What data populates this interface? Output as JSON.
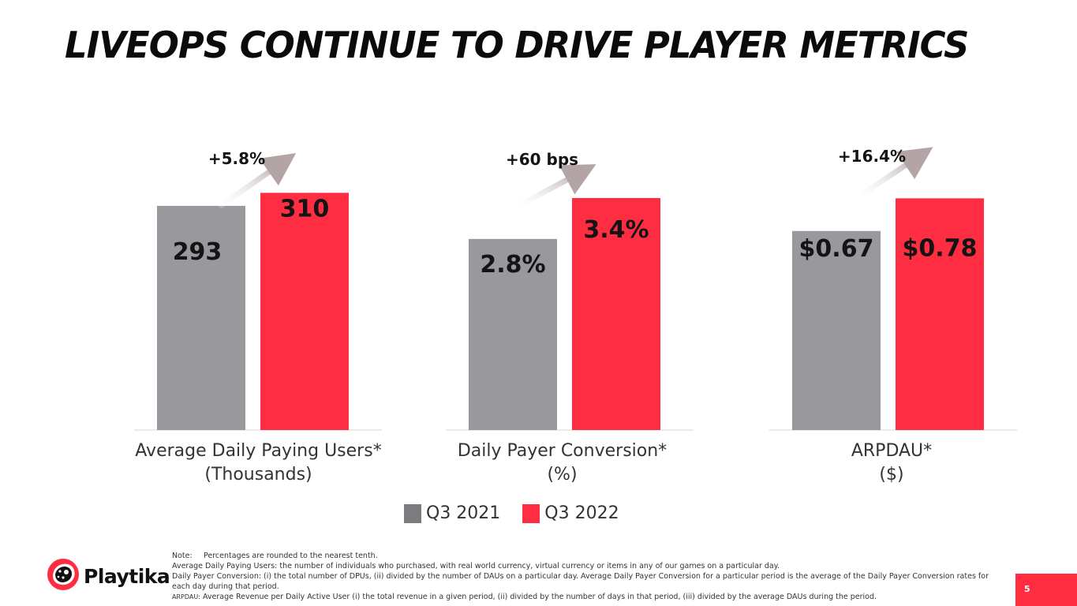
{
  "title": "LIVEOPS CONTINUE TO DRIVE PLAYER METRICS",
  "colors": {
    "q3_2021": "#99989c",
    "q3_2022": "#ff2d42",
    "accent": "#ff2d3f",
    "arrow": "#b3a4a6"
  },
  "chart_data": [
    {
      "type": "bar",
      "categories": [
        "Q3 2021",
        "Q3 2022"
      ],
      "values": [
        293,
        310
      ],
      "value_labels": [
        "293",
        "310"
      ],
      "change_label": "+5.8%",
      "xlabel_line1": "Average Daily Paying Users*",
      "xlabel_line2": "(Thousands)",
      "ylim": [
        0,
        330
      ]
    },
    {
      "type": "bar",
      "categories": [
        "Q3 2021",
        "Q3 2022"
      ],
      "values": [
        2.8,
        3.4
      ],
      "value_labels": [
        "2.8%",
        "3.4%"
      ],
      "change_label": "+60 bps",
      "xlabel_line1": "Daily Payer Conversion*",
      "xlabel_line2": "(%)",
      "ylim": [
        0,
        3.7
      ]
    },
    {
      "type": "bar",
      "categories": [
        "Q3 2021",
        "Q3 2022"
      ],
      "values": [
        0.67,
        0.78
      ],
      "value_labels": [
        "$0.67",
        "$0.78"
      ],
      "change_label": "+16.4%",
      "xlabel_line1": "ARPDAU*",
      "xlabel_line2": "($)",
      "ylim": [
        0,
        0.85
      ]
    }
  ],
  "legend": [
    "Q3 2021",
    "Q3 2022"
  ],
  "notes": {
    "label": "Note:",
    "line1": "Percentages are rounded to the nearest tenth.",
    "line2": "Average Daily Paying Users: the number of individuals who purchased, with real world currency, virtual currency or items in any of our games on a particular day.",
    "line3": "Daily Payer Conversion: (i) the total number of DPUs, (ii) divided by the number of DAUs on a particular day. Average Daily Payer Conversion for a particular period is the average of the Daily Payer Conversion rates for each day during that period.",
    "line4_label": "ARPDAU:",
    "line4": "Average Revenue per Daily Active User (i) the total revenue in a given period, (ii) divided by the number of days in that period, (iii) divided by the average DAUs during the period."
  },
  "logo": {
    "text": "Playtika",
    "icon": "cheetah-head-icon"
  },
  "page_number": "5"
}
